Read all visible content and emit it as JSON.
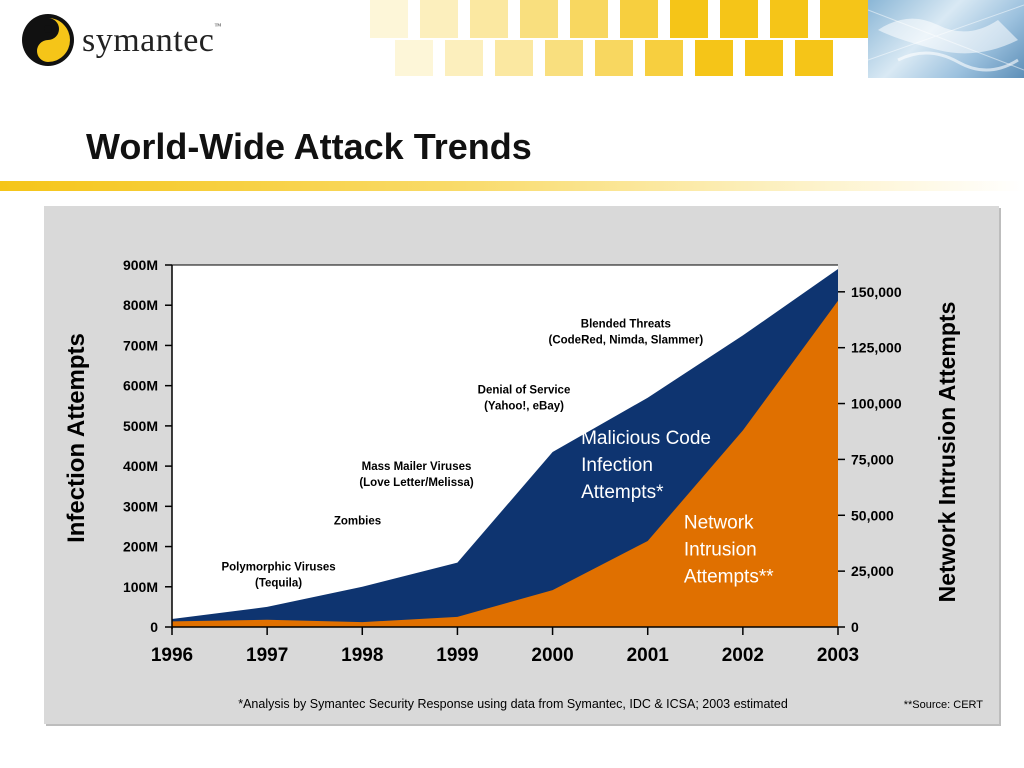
{
  "header": {
    "brand": "symantec",
    "brand_mark": "™"
  },
  "slide_title": "World-Wide Attack Trends",
  "colors": {
    "malicious_fill": "#0e3470",
    "intrusion_fill": "#e07000",
    "panel_bg": "#d9d9d9",
    "accent_yellow": "#f5c518"
  },
  "chart_data": {
    "type": "area",
    "title": "",
    "x": [
      1996,
      1997,
      1998,
      1999,
      2000,
      2001,
      2002,
      2003
    ],
    "x_tick_labels": [
      "1996",
      "1997",
      "1998",
      "1999",
      "2000",
      "2001",
      "2002",
      "2003"
    ],
    "ylabel_left": "Infection Attempts",
    "ylabel_right": "Network Intrusion Attempts",
    "ylim_left": [
      0,
      900000000
    ],
    "ylim_right": [
      0,
      162000
    ],
    "left_tick_values": [
      0,
      100000000,
      200000000,
      300000000,
      400000000,
      500000000,
      600000000,
      700000000,
      800000000,
      900000000
    ],
    "left_tick_labels": [
      "0",
      "100M",
      "200M",
      "300M",
      "400M",
      "500M",
      "600M",
      "700M",
      "800M",
      "900M"
    ],
    "right_tick_values": [
      0,
      25000,
      50000,
      75000,
      100000,
      125000,
      150000
    ],
    "right_tick_labels": [
      "0",
      "25,000",
      "50,000",
      "75,000",
      "100,000",
      "125,000",
      "150,000"
    ],
    "series": [
      {
        "name": "Malicious Code Infection Attempts*",
        "axis": "left",
        "values": [
          20000000,
          50000000,
          100000000,
          160000000,
          435000000,
          570000000,
          725000000,
          890000000
        ]
      },
      {
        "name": "Network Intrusion Attempts**",
        "axis": "right",
        "values": [
          2500,
          3200,
          2200,
          4500,
          16500,
          38500,
          88000,
          146000
        ]
      }
    ],
    "annotations": [
      {
        "lines": [
          "Polymorphic Viruses",
          "(Tequila)"
        ],
        "x": 1997.12,
        "y": 140000000
      },
      {
        "lines": [
          "Zombies"
        ],
        "x": 1997.95,
        "y": 255000000
      },
      {
        "lines": [
          "Mass Mailer Viruses",
          "(Love Letter/Melissa)"
        ],
        "x": 1998.57,
        "y": 390000000
      },
      {
        "lines": [
          "Denial of Service",
          "(Yahoo!, eBay)"
        ],
        "x": 1999.7,
        "y": 580000000
      },
      {
        "lines": [
          "Blended Threats",
          "(CodeRed, Nimda, Slammer)"
        ],
        "x": 2000.77,
        "y": 745000000
      }
    ],
    "series_labels": [
      {
        "lines": [
          "Malicious Code",
          "Infection",
          "Attempts*"
        ],
        "x": 2000.3,
        "y": 455000000
      },
      {
        "lines": [
          "Network",
          "Intrusion",
          "Attempts**"
        ],
        "x": 2001.38,
        "y": 245000000
      }
    ]
  },
  "footnotes": {
    "analysis": "*Analysis by Symantec Security Response using data from Symantec, IDC & ICSA; 2003 estimated",
    "source": "**Source: CERT"
  }
}
